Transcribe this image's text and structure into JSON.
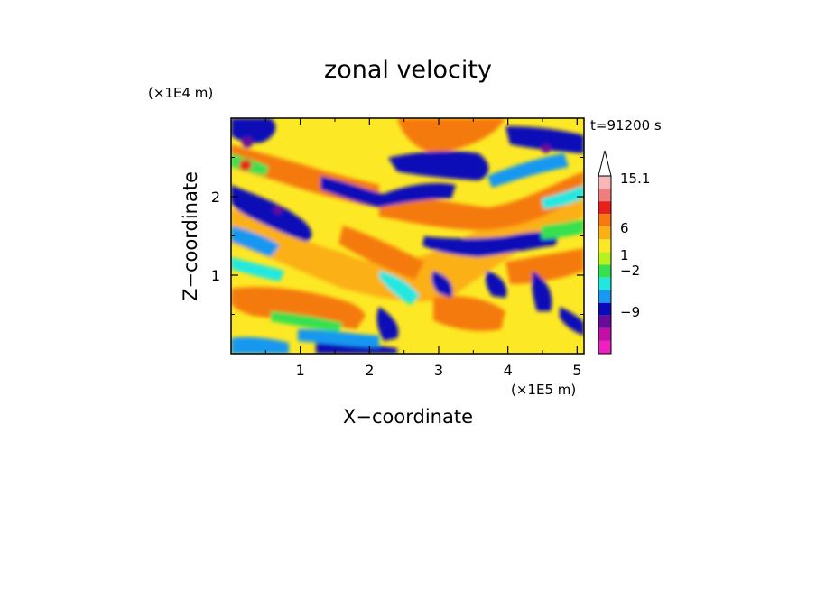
{
  "chart_data": {
    "type": "heatmap",
    "title": "zonal velocity",
    "xlabel": "X−coordinate",
    "ylabel": "Z−coordinate",
    "x_unit": "(×1E5 m)",
    "y_unit": "(×1E4 m)",
    "time_label": "t=91200 s",
    "xlim": [
      0,
      5.1
    ],
    "ylim": [
      0,
      3.0
    ],
    "x_ticks": [
      1,
      2,
      3,
      4,
      5
    ],
    "y_ticks": [
      1,
      2
    ],
    "x_tick_labels": [
      "1",
      "2",
      "3",
      "4",
      "5"
    ],
    "y_tick_labels": [
      "1",
      "2"
    ],
    "colorbar": {
      "colors": [
        "#f7b7b7",
        "#f08080",
        "#e8201c",
        "#f57a10",
        "#fbb015",
        "#fde825",
        "#b8f020",
        "#38e050",
        "#20e8e0",
        "#1898f0",
        "#0a0ab8",
        "#6a0a98",
        "#c010a8",
        "#f020c0"
      ],
      "labels": [
        "15.1",
        "6",
        "1",
        "−2",
        "−9"
      ],
      "extend_max": true
    },
    "colors": {
      "dark_blue": "#0a0ab8",
      "light_blue": "#1898f0",
      "cyan": "#20e8e0",
      "green": "#38e050",
      "yellow_green": "#b8f020",
      "yellow": "#fde825",
      "light_orange": "#fbb015",
      "orange": "#f57a10",
      "red": "#e8201c",
      "purple": "#6a0a98"
    }
  }
}
